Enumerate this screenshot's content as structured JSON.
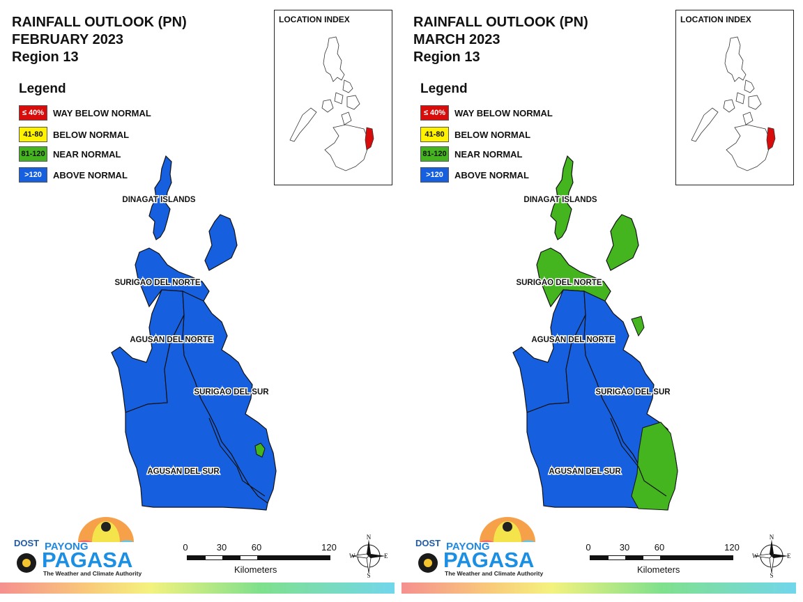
{
  "colors": {
    "way_below": "#d90c0c",
    "below": "#fff200",
    "near": "#44b51f",
    "above": "#1660e0"
  },
  "legend": {
    "title": "Legend",
    "items": [
      {
        "swatch": "≤ 40%",
        "label": "WAY BELOW NORMAL",
        "color": "#d90c0c",
        "text_color": "#ffffff"
      },
      {
        "swatch": "41-80",
        "label": "BELOW NORMAL",
        "color": "#fff200",
        "text_color": "#111111"
      },
      {
        "swatch": "81-120",
        "label": "NEAR NORMAL",
        "color": "#44b51f",
        "text_color": "#111111"
      },
      {
        "swatch": ">120",
        "label": "ABOVE NORMAL",
        "color": "#1660e0",
        "text_color": "#ffffff"
      }
    ]
  },
  "location_index": {
    "title": "LOCATION INDEX"
  },
  "provinces": {
    "dinagat": "DINAGAT ISLANDS",
    "surigao_norte": "SURIGAO DEL NORTE",
    "agusan_norte": "AGUSAN DEL NORTE",
    "surigao_sur": "SURIGAO DEL SUR",
    "agusan_sur": "AGUSAN DEL SUR"
  },
  "maps": [
    {
      "title_line1": "RAINFALL OUTLOOK (PN)",
      "title_line2": "FEBRUARY 2023",
      "title_line3": "Region 13",
      "categories": {
        "dinagat": "above",
        "surigao_norte": "above",
        "agusan_norte": "above",
        "surigao_sur": "above",
        "agusan_sur": "above"
      }
    },
    {
      "title_line1": "RAINFALL OUTLOOK (PN)",
      "title_line2": "MARCH 2023",
      "title_line3": "Region 13",
      "categories": {
        "dinagat": "near",
        "surigao_norte": "near",
        "agusan_norte": "above",
        "surigao_sur": "above",
        "agusan_sur": "above"
      }
    }
  ],
  "scale_bar": {
    "ticks": [
      "0",
      "30",
      "60",
      "120"
    ],
    "units": "Kilometers"
  },
  "compass": {
    "n": "N",
    "s": "S",
    "e": "E",
    "w": "W"
  },
  "logo": {
    "dost": "DOST",
    "payong": "PAYONG",
    "pagasa": "PAGASA",
    "tagline": "The Weather and Climate Authority"
  }
}
